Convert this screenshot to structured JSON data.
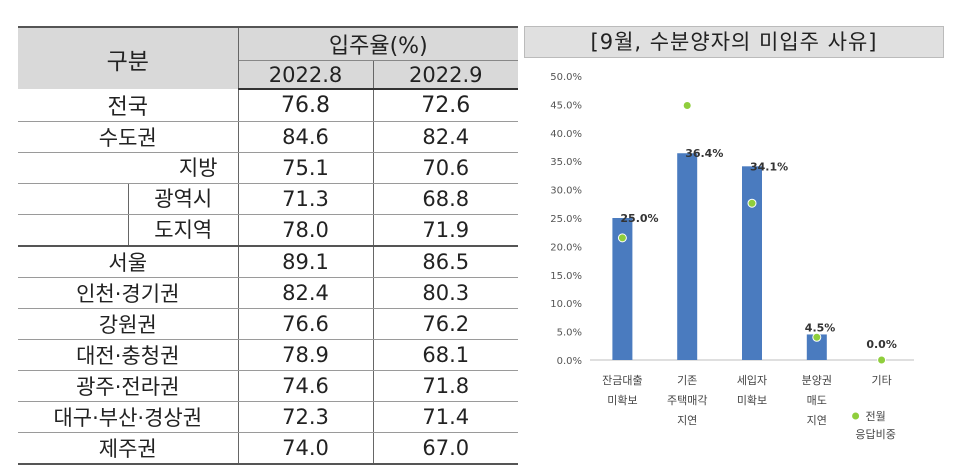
{
  "table": {
    "row_header": "구분",
    "col_group_header": "입주율(%)",
    "periods": [
      "2022.8",
      "2022.9"
    ],
    "rows": [
      {
        "name": "전국",
        "v1": "76.8",
        "v2": "72.6"
      },
      {
        "name": "수도권",
        "v1": "84.6",
        "v2": "82.4"
      },
      {
        "name": "지방",
        "v1": "75.1",
        "v2": "70.6"
      },
      {
        "name": "광역시",
        "v1": "71.3",
        "v2": "68.8"
      },
      {
        "name": "도지역",
        "v1": "78.0",
        "v2": "71.9"
      },
      {
        "name": "서울",
        "v1": "89.1",
        "v2": "86.5"
      },
      {
        "name": "인천·경기권",
        "v1": "82.4",
        "v2": "80.3"
      },
      {
        "name": "강원권",
        "v1": "76.6",
        "v2": "76.2"
      },
      {
        "name": "대전·충청권",
        "v1": "78.9",
        "v2": "68.1"
      },
      {
        "name": "광주·전라권",
        "v1": "74.6",
        "v2": "71.8"
      },
      {
        "name": "대구·부산·경상권",
        "v1": "72.3",
        "v2": "71.4"
      },
      {
        "name": "제주권",
        "v1": "74.0",
        "v2": "67.0"
      }
    ]
  },
  "chart_data": {
    "type": "bar",
    "title": "[9월, 수분양자의 미입주 사유]",
    "categories": [
      [
        "잔금대출",
        "미확보"
      ],
      [
        "기존",
        "주택매각",
        "지연"
      ],
      [
        "세입자",
        "미확보"
      ],
      [
        "분양권",
        "매도",
        "지연"
      ],
      [
        "기타"
      ]
    ],
    "values": [
      25.0,
      36.4,
      34.1,
      4.5,
      0.0
    ],
    "data_labels": [
      "25.0%",
      "36.4%",
      "34.1%",
      "4.5%",
      "0.0%"
    ],
    "prev_month_values": [
      21.5,
      44.8,
      27.6,
      4.0,
      0.0
    ],
    "prev_month_legend": [
      "전월",
      "응답비중"
    ],
    "ylim": [
      0,
      50
    ],
    "ytick_step": 5,
    "ytick_labels": [
      "0.0%",
      "5.0%",
      "10.0%",
      "15.0%",
      "20.0%",
      "25.0%",
      "30.0%",
      "35.0%",
      "40.0%",
      "45.0%",
      "50.0%"
    ],
    "bar_color": "#4a7bbf",
    "marker_color": "#8fce3c"
  }
}
